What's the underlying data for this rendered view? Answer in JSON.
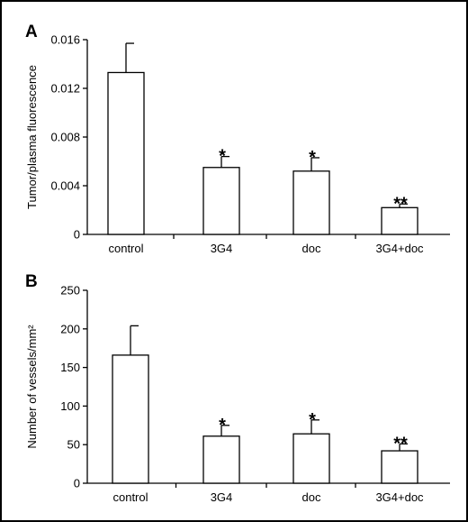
{
  "chart_data": [
    {
      "panel": "A",
      "type": "bar",
      "categories": [
        "control",
        "3G4",
        "doc",
        "3G4+doc"
      ],
      "values": [
        0.0133,
        0.0055,
        0.0052,
        0.0022
      ],
      "errors": [
        0.0024,
        0.0009,
        0.0011,
        0.0003
      ],
      "significance": [
        "",
        "*",
        "*",
        "**"
      ],
      "ylabel": "Tumor/plasma fluorescence",
      "ylim": [
        0,
        0.016
      ],
      "yticks": [
        0,
        0.004,
        0.008,
        0.012,
        0.016
      ],
      "ytick_labels": [
        "0",
        "0.004",
        "0.008",
        "0.012",
        "0.016"
      ],
      "bar_color": "#ffffff",
      "grid": false
    },
    {
      "panel": "B",
      "type": "bar",
      "categories": [
        "control",
        "3G4",
        "doc",
        "3G4+doc"
      ],
      "values": [
        166,
        61,
        64,
        42
      ],
      "errors": [
        38,
        14,
        18,
        9
      ],
      "significance": [
        "",
        "*",
        "*",
        "**"
      ],
      "ylabel": "Number of vessels/mm²",
      "ylim": [
        0,
        250
      ],
      "yticks": [
        0,
        50,
        100,
        150,
        200,
        250
      ],
      "ytick_labels": [
        "0",
        "50",
        "100",
        "150",
        "200",
        "250"
      ],
      "bar_color": "#ffffff",
      "grid": false
    }
  ]
}
